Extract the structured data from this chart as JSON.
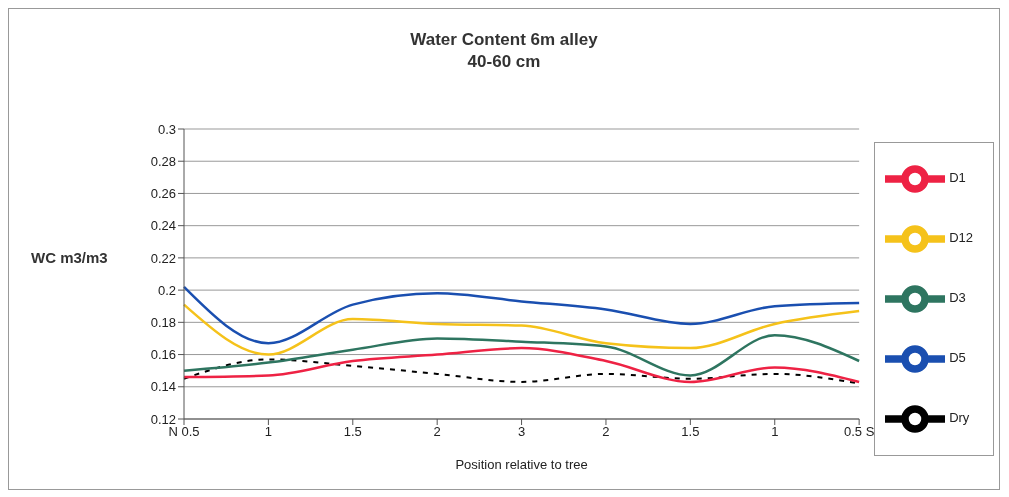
{
  "chart_data": {
    "type": "line",
    "title": "Water Content 6m alley",
    "subtitle": "40-60 cm",
    "xlabel": "Position relative to tree",
    "ylabel": "WC m3/m3",
    "categories": [
      "N 0.5",
      "1",
      "1.5",
      "2",
      "3",
      "2",
      "1.5",
      "1",
      "0.5 S"
    ],
    "series": [
      {
        "name": "Dry",
        "color": "#000000",
        "line_style": "dashed",
        "values": [
          0.145,
          0.157,
          0.153,
          0.148,
          0.143,
          0.148,
          0.145,
          0.148,
          0.142
        ]
      },
      {
        "name": "D1",
        "color": "#ee2244",
        "values": [
          0.146,
          0.147,
          0.156,
          0.16,
          0.164,
          0.156,
          0.143,
          0.152,
          0.143
        ]
      },
      {
        "name": "D3",
        "color": "#2e7560",
        "values": [
          0.15,
          0.155,
          0.163,
          0.17,
          0.168,
          0.165,
          0.147,
          0.172,
          0.156
        ]
      },
      {
        "name": "D5",
        "color": "#1a4fb0",
        "values": [
          0.202,
          0.167,
          0.191,
          0.198,
          0.193,
          0.188,
          0.179,
          0.19,
          0.192
        ]
      },
      {
        "name": "D12",
        "color": "#f5c21a",
        "values": [
          0.191,
          0.16,
          0.182,
          0.179,
          0.178,
          0.167,
          0.164,
          0.179,
          0.187
        ]
      }
    ],
    "ylim": [
      0.12,
      0.3
    ],
    "yticks": [
      0.12,
      0.14,
      0.16,
      0.18,
      0.2,
      0.22,
      0.24,
      0.26,
      0.28,
      0.3
    ],
    "grid": "y",
    "legend": "right",
    "marker": "none"
  }
}
